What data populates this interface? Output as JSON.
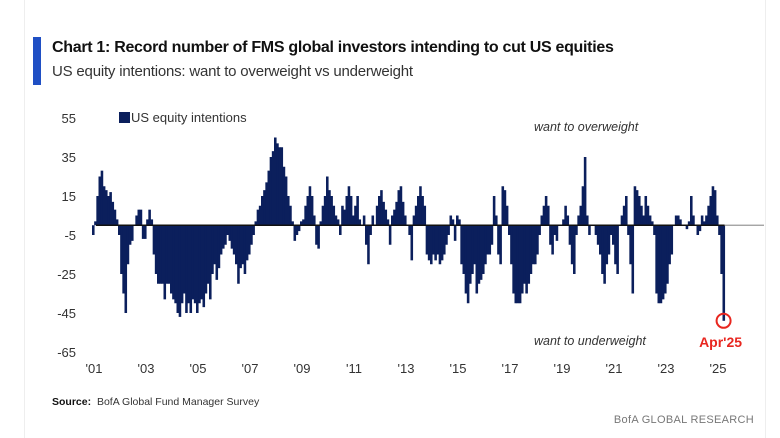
{
  "header": {
    "title": "Chart 1: Record number of FMS global investors intending to cut US equities",
    "subtitle": "US equity intentions: want to overweight vs underweight"
  },
  "footer": {
    "source_label": "Source:",
    "source_text": "BofA Global Fund Manager Survey",
    "brand": "BofA GLOBAL RESEARCH"
  },
  "colors": {
    "bars": "#0b1f5c",
    "accent": "#1f4fc4",
    "highlight": "#e8261f"
  },
  "chart_data": {
    "type": "bar",
    "title": "Chart 1: Record number of FMS global investors intending to cut US equities",
    "subtitle": "US equity intentions: want to overweight vs underweight",
    "xlabel": "",
    "ylabel": "",
    "ylim": [
      -65,
      55
    ],
    "yticks": [
      55,
      35,
      15,
      -5,
      -25,
      -45,
      -65
    ],
    "xtick_labels": [
      "'01",
      "'03",
      "'05",
      "'07",
      "'09",
      "'11",
      "'13",
      "'15",
      "'17",
      "'19",
      "'21",
      "'23",
      "'25"
    ],
    "x_start": "2001-01",
    "x_end": "2025-04",
    "frequency": "monthly",
    "grid": false,
    "legend": {
      "position": "top-left",
      "entries": [
        "US equity intentions"
      ]
    },
    "annotations": {
      "top": "want to overweight",
      "bottom": "want to underweight",
      "highlight": "Apr'25"
    },
    "series": [
      {
        "name": "US equity intentions",
        "values": [
          -5,
          2,
          15,
          25,
          28,
          20,
          18,
          15,
          17,
          12,
          8,
          3,
          -5,
          -25,
          -35,
          -45,
          -20,
          -10,
          -8,
          0,
          5,
          8,
          8,
          -7,
          -7,
          3,
          8,
          3,
          -15,
          -25,
          -30,
          -30,
          -30,
          -38,
          -30,
          -30,
          -35,
          -38,
          -40,
          -45,
          -47,
          -40,
          -35,
          -45,
          -40,
          -45,
          -38,
          -40,
          -45,
          -40,
          -38,
          -42,
          -35,
          -30,
          -38,
          -25,
          -20,
          -28,
          -22,
          -15,
          -12,
          -10,
          -5,
          -8,
          -12,
          -15,
          -20,
          -30,
          -22,
          -20,
          -25,
          -18,
          -15,
          -10,
          -5,
          2,
          8,
          10,
          15,
          18,
          22,
          28,
          35,
          38,
          45,
          42,
          40,
          40,
          30,
          25,
          15,
          10,
          2,
          -8,
          -5,
          -3,
          2,
          3,
          10,
          15,
          20,
          15,
          5,
          -10,
          -12,
          2,
          10,
          15,
          25,
          18,
          15,
          10,
          5,
          3,
          -5,
          10,
          8,
          15,
          20,
          15,
          5,
          10,
          15,
          3,
          0,
          5,
          -10,
          -20,
          -5,
          5,
          0,
          10,
          15,
          18,
          12,
          8,
          3,
          -10,
          5,
          8,
          12,
          18,
          20,
          12,
          5,
          0,
          -5,
          -18,
          5,
          10,
          15,
          20,
          15,
          10,
          -15,
          -18,
          -20,
          -15,
          -18,
          -15,
          -20,
          -18,
          -15,
          -10,
          -5,
          5,
          3,
          -8,
          5,
          3,
          -20,
          -25,
          -35,
          -40,
          -30,
          -25,
          -20,
          -35,
          -30,
          -28,
          -25,
          -20,
          -15,
          -15,
          -10,
          15,
          5,
          -15,
          -20,
          20,
          18,
          10,
          -5,
          -20,
          -35,
          -40,
          -40,
          -40,
          -35,
          -30,
          -35,
          -30,
          -25,
          -20,
          -20,
          -15,
          -5,
          5,
          10,
          15,
          10,
          -10,
          -15,
          -5,
          -8,
          0,
          0,
          3,
          10,
          5,
          -10,
          -20,
          -25,
          -5,
          5,
          10,
          20,
          35,
          5,
          -5,
          0,
          0,
          -5,
          -10,
          -15,
          -25,
          -30,
          -20,
          -15,
          -5,
          -10,
          -20,
          -25,
          0,
          5,
          10,
          15,
          -5,
          -20,
          -35,
          20,
          18,
          15,
          10,
          5,
          15,
          10,
          5,
          2,
          -5,
          -35,
          -40,
          -40,
          -38,
          -35,
          -30,
          -20,
          -15,
          0,
          5,
          5,
          3,
          0,
          0,
          -2,
          2,
          15,
          5,
          0,
          -5,
          -3,
          5,
          2,
          5,
          10,
          15,
          20,
          18,
          5,
          -5,
          -25,
          -49
        ]
      }
    ]
  }
}
